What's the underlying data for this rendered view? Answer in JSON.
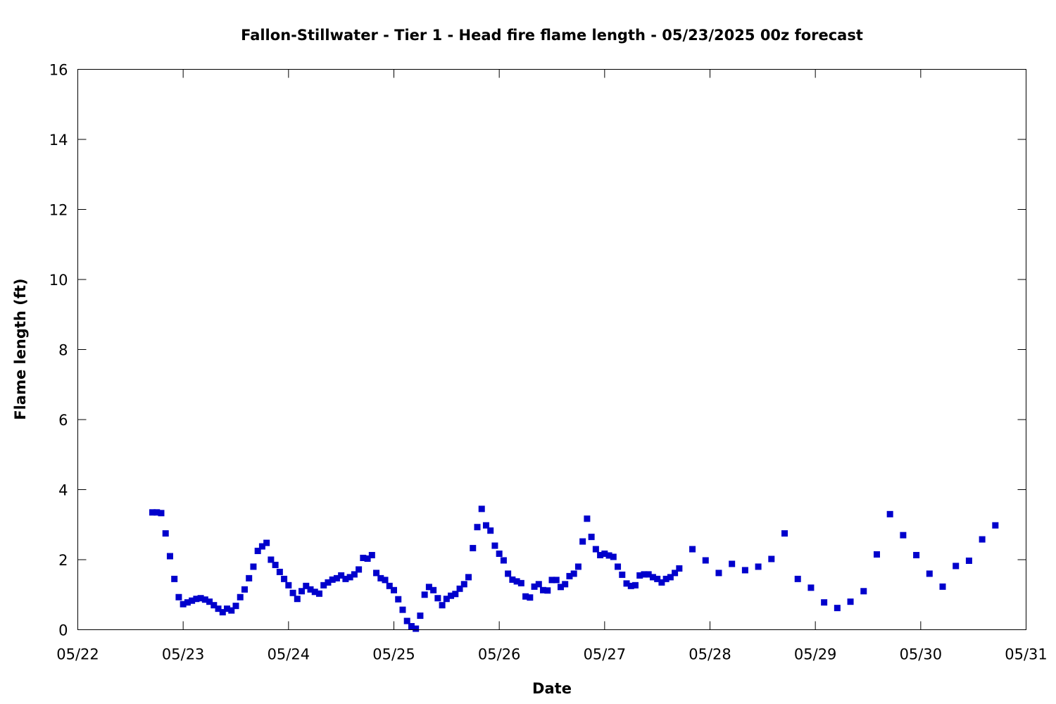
{
  "chart_data": {
    "type": "scatter",
    "title": "Fallon-Stillwater - Tier 1 - Head fire flame length - 05/23/2025 00z forecast",
    "xlabel": "Date",
    "ylabel": "Flame length (ft)",
    "x_axis": "date",
    "year": 2025,
    "xlim": [
      "05/22 00:00",
      "05/31 00:00"
    ],
    "ylim": [
      0,
      16
    ],
    "x_ticks": [
      "05/22",
      "05/23",
      "05/24",
      "05/25",
      "05/26",
      "05/27",
      "05/28",
      "05/29",
      "05/30",
      "05/31"
    ],
    "y_ticks": [
      "0",
      "2",
      "4",
      "6",
      "8",
      "10",
      "12",
      "14",
      "16"
    ],
    "grid": false,
    "legend": "none",
    "marker_color": "#0000cc",
    "marker": "square",
    "series": [
      {
        "x": [
          "05/22 17:00",
          "05/22 18:00",
          "05/22 19:00",
          "05/22 20:00",
          "05/22 21:00",
          "05/22 22:00",
          "05/22 23:00",
          "05/23 00:00",
          "05/23 01:00",
          "05/23 02:00",
          "05/23 03:00",
          "05/23 04:00",
          "05/23 05:00",
          "05/23 06:00",
          "05/23 07:00",
          "05/23 08:00",
          "05/23 09:00",
          "05/23 10:00",
          "05/23 11:00",
          "05/23 12:00",
          "05/23 13:00",
          "05/23 14:00",
          "05/23 15:00",
          "05/23 16:00",
          "05/23 17:00",
          "05/23 18:00",
          "05/23 19:00",
          "05/23 20:00",
          "05/23 21:00",
          "05/23 22:00",
          "05/23 23:00",
          "05/24 00:00",
          "05/24 01:00",
          "05/24 02:00",
          "05/24 03:00",
          "05/24 04:00",
          "05/24 05:00",
          "05/24 06:00",
          "05/24 07:00",
          "05/24 08:00",
          "05/24 09:00",
          "05/24 10:00",
          "05/24 11:00",
          "05/24 12:00",
          "05/24 13:00",
          "05/24 14:00",
          "05/24 15:00",
          "05/24 16:00",
          "05/24 17:00",
          "05/24 18:00",
          "05/24 19:00",
          "05/24 20:00",
          "05/24 21:00",
          "05/24 22:00",
          "05/24 23:00",
          "05/25 00:00",
          "05/25 01:00",
          "05/25 02:00",
          "05/25 03:00",
          "05/25 04:00",
          "05/25 05:00",
          "05/25 06:00",
          "05/25 07:00",
          "05/25 08:00",
          "05/25 09:00",
          "05/25 10:00",
          "05/25 11:00",
          "05/25 12:00",
          "05/25 13:00",
          "05/25 14:00",
          "05/25 15:00",
          "05/25 16:00",
          "05/25 17:00",
          "05/25 18:00",
          "05/25 19:00",
          "05/25 20:00",
          "05/25 21:00",
          "05/25 22:00",
          "05/25 23:00",
          "05/26 00:00",
          "05/26 01:00",
          "05/26 02:00",
          "05/26 03:00",
          "05/26 04:00",
          "05/26 05:00",
          "05/26 06:00",
          "05/26 07:00",
          "05/26 08:00",
          "05/26 09:00",
          "05/26 10:00",
          "05/26 11:00",
          "05/26 12:00",
          "05/26 13:00",
          "05/26 14:00",
          "05/26 15:00",
          "05/26 16:00",
          "05/26 17:00",
          "05/26 18:00",
          "05/26 19:00",
          "05/26 20:00",
          "05/26 21:00",
          "05/26 22:00",
          "05/26 23:00",
          "05/27 00:00",
          "05/27 01:00",
          "05/27 02:00",
          "05/27 03:00",
          "05/27 04:00",
          "05/27 05:00",
          "05/27 06:00",
          "05/27 07:00",
          "05/27 08:00",
          "05/27 09:00",
          "05/27 10:00",
          "05/27 11:00",
          "05/27 12:00",
          "05/27 13:00",
          "05/27 14:00",
          "05/27 15:00",
          "05/27 16:00",
          "05/27 17:00",
          "05/27 20:00",
          "05/27 23:00",
          "05/28 02:00",
          "05/28 05:00",
          "05/28 08:00",
          "05/28 11:00",
          "05/28 14:00",
          "05/28 17:00",
          "05/28 20:00",
          "05/28 23:00",
          "05/29 02:00",
          "05/29 05:00",
          "05/29 08:00",
          "05/29 11:00",
          "05/29 14:00",
          "05/29 17:00",
          "05/29 20:00",
          "05/29 23:00",
          "05/30 02:00",
          "05/30 05:00",
          "05/30 08:00",
          "05/30 11:00",
          "05/30 14:00",
          "05/30 17:00"
        ],
        "y": [
          3.35,
          3.35,
          3.33,
          2.75,
          2.1,
          1.45,
          0.93,
          0.73,
          0.78,
          0.83,
          0.88,
          0.9,
          0.86,
          0.8,
          0.7,
          0.6,
          0.5,
          0.6,
          0.55,
          0.68,
          0.93,
          1.15,
          1.47,
          1.8,
          2.25,
          2.38,
          2.48,
          2.0,
          1.85,
          1.65,
          1.45,
          1.27,
          1.05,
          0.88,
          1.1,
          1.25,
          1.15,
          1.08,
          1.03,
          1.27,
          1.35,
          1.43,
          1.47,
          1.55,
          1.45,
          1.5,
          1.58,
          1.72,
          2.05,
          2.03,
          2.13,
          1.62,
          1.47,
          1.42,
          1.25,
          1.13,
          0.87,
          0.57,
          0.25,
          0.1,
          0.03,
          0.4,
          1.0,
          1.22,
          1.13,
          0.9,
          0.7,
          0.88,
          0.97,
          1.02,
          1.17,
          1.3,
          1.5,
          2.33,
          2.93,
          3.45,
          2.98,
          2.83,
          2.4,
          2.17,
          1.98,
          1.6,
          1.43,
          1.38,
          1.33,
          0.95,
          0.92,
          1.23,
          1.3,
          1.13,
          1.12,
          1.42,
          1.42,
          1.22,
          1.3,
          1.53,
          1.6,
          1.8,
          2.52,
          3.17,
          2.65,
          2.3,
          2.13,
          2.17,
          2.12,
          2.08,
          1.8,
          1.57,
          1.32,
          1.25,
          1.27,
          1.55,
          1.58,
          1.58,
          1.5,
          1.45,
          1.35,
          1.45,
          1.5,
          1.62,
          1.75,
          2.3,
          1.98,
          1.62,
          1.88,
          1.7,
          1.8,
          2.02,
          2.75,
          1.45,
          1.2,
          0.78,
          0.62,
          0.8,
          1.1,
          2.15,
          3.3,
          2.7,
          2.13,
          1.6,
          1.23,
          1.82,
          1.97,
          2.58,
          2.98
        ]
      }
    ]
  }
}
